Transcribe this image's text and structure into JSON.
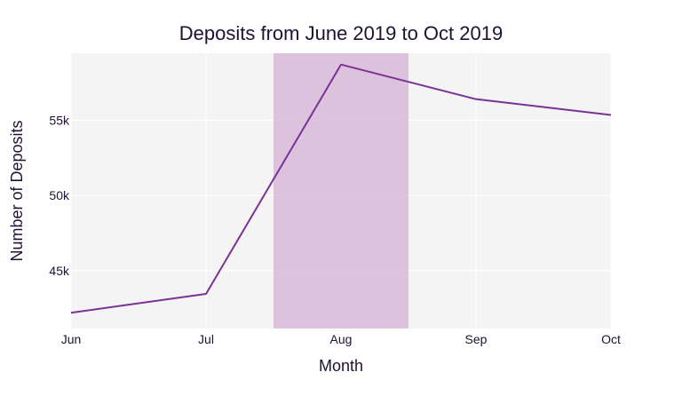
{
  "chart_data": {
    "type": "line",
    "title": "Deposits from June 2019 to Oct 2019",
    "xlabel": "Month",
    "ylabel": "Number of Deposits",
    "categories": [
      "Jun",
      "Jul",
      "Aug",
      "Sep",
      "Oct"
    ],
    "series": [
      {
        "values": [
          42200,
          43450,
          58700,
          56400,
          55350
        ]
      }
    ],
    "y_ticks": [
      45000,
      50000,
      55000
    ],
    "y_tick_labels": [
      "45k",
      "50k",
      "55k"
    ],
    "ylim": [
      41150,
      59450
    ],
    "grid": true,
    "highlight_band": {
      "from": "Jul",
      "to": "Sep",
      "start_fraction": 0.5,
      "end_fraction": 0.5
    },
    "colors": {
      "line": "#7b3294",
      "band": "#d7b5d8",
      "plot_background": "#f4f4f4",
      "grid": "#ffffff",
      "text": "#1f1133"
    }
  }
}
